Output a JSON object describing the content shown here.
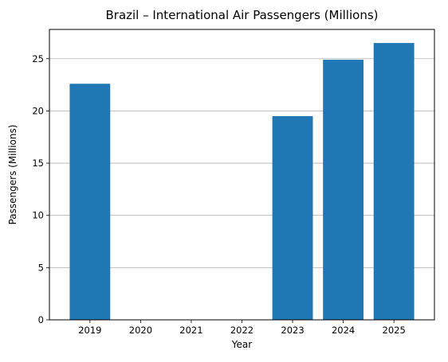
{
  "chart_data": {
    "type": "bar",
    "title": "Brazil – International Air Passengers (Millions)",
    "xlabel": "Year",
    "ylabel": "Passengers (Millions)",
    "categories": [
      "2019",
      "2020",
      "2021",
      "2022",
      "2023",
      "2024",
      "2025"
    ],
    "values": [
      22.6,
      0,
      0,
      0,
      19.5,
      24.9,
      26.5
    ],
    "ylim": [
      0,
      27.8
    ],
    "yticks": [
      0,
      5,
      10,
      15,
      20,
      25
    ],
    "grid": "y-major",
    "legend": "none",
    "bar_color": "#1f77b4",
    "grid_color": "#b0b0b0"
  }
}
